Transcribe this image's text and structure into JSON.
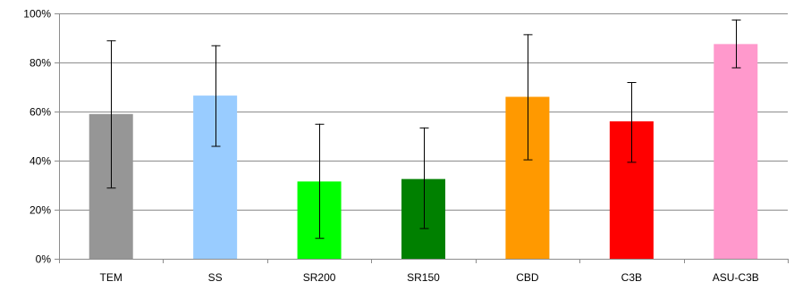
{
  "chart_data": {
    "type": "bar",
    "title": "",
    "xlabel": "",
    "ylabel": "",
    "ylim": [
      0,
      100
    ],
    "y_ticks": [
      0,
      20,
      40,
      60,
      80,
      100
    ],
    "y_tick_labels": [
      "0%",
      "20%",
      "40%",
      "60%",
      "80%",
      "100%"
    ],
    "grid": "horizontal",
    "legend": "none",
    "categories": [
      "TEM",
      "SS",
      "SR200",
      "SR150",
      "CBD",
      "C3B",
      "ASU-C3B"
    ],
    "values": [
      59,
      66.5,
      31.5,
      32.5,
      66,
      56,
      87.5
    ],
    "error_low": [
      29,
      46,
      8.5,
      12.5,
      40.5,
      39.5,
      78
    ],
    "error_high": [
      89,
      87,
      55,
      53.5,
      91.5,
      72,
      97.5
    ],
    "colors": [
      "#969696",
      "#99ccff",
      "#00ff00",
      "#008000",
      "#ff9900",
      "#ff0000",
      "#ff99cc"
    ]
  }
}
